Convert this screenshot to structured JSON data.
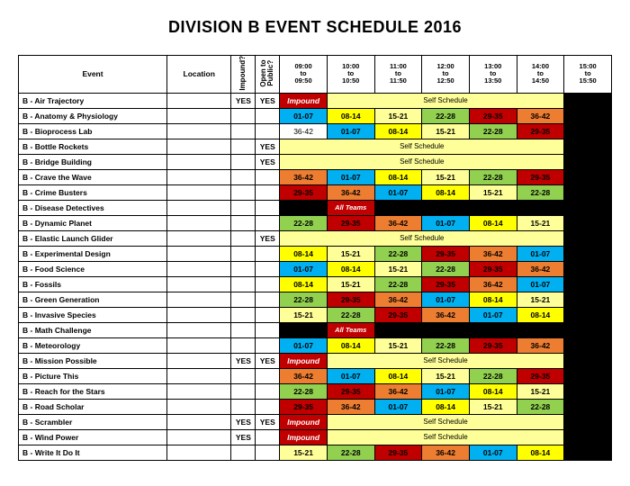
{
  "title": "DIVISION B EVENT SCHEDULE 2016",
  "headers": {
    "event": "Event",
    "location": "Location",
    "impound": "Impound?",
    "public": "Open to Public?",
    "times": [
      {
        "t1": "09:00",
        "t2": "to",
        "t3": "09:50"
      },
      {
        "t1": "10:00",
        "t2": "to",
        "t3": "10:50"
      },
      {
        "t1": "11:00",
        "t2": "to",
        "t3": "11:50"
      },
      {
        "t1": "12:00",
        "t2": "to",
        "t3": "12:50"
      },
      {
        "t1": "13:00",
        "t2": "to",
        "t3": "13:50"
      },
      {
        "t1": "14:00",
        "t2": "to",
        "t3": "14:50"
      },
      {
        "t1": "15:00",
        "t2": "to",
        "t3": "15:50"
      }
    ]
  },
  "yes": "YES",
  "impound_label": "Impound",
  "selfsched_label": "Self Schedule",
  "allteams_label": "All Teams",
  "colors": {
    "blue": "#00b0f0",
    "yellow": "#ffff00",
    "yellow2": "#ffff99",
    "green": "#92d050",
    "red": "#c00000",
    "orange": "#ed7d31",
    "black": "#000000",
    "white": "#ffffff"
  },
  "rows": [
    {
      "name": "B - Air Trajectory",
      "imp": "YES",
      "pub": "YES",
      "cells": [
        {
          "t": "impound"
        },
        {
          "t": "self",
          "span": 5
        },
        {
          "t": "black"
        }
      ]
    },
    {
      "name": "B - Anatomy & Physiology",
      "cells": [
        {
          "v": "01-07",
          "c": "blue"
        },
        {
          "v": "08-14",
          "c": "yellow"
        },
        {
          "v": "15-21",
          "c": "yellow2"
        },
        {
          "v": "22-28",
          "c": "green"
        },
        {
          "v": "29-35",
          "c": "red"
        },
        {
          "v": "36-42",
          "c": "orange"
        },
        {
          "t": "black"
        }
      ]
    },
    {
      "name": "B - Bioprocess Lab",
      "cells": [
        {
          "v": "36-42",
          "c": "white"
        },
        {
          "v": "01-07",
          "c": "blue"
        },
        {
          "v": "08-14",
          "c": "yellow"
        },
        {
          "v": "15-21",
          "c": "yellow2"
        },
        {
          "v": "22-28",
          "c": "green"
        },
        {
          "v": "29-35",
          "c": "red"
        },
        {
          "t": "black"
        }
      ]
    },
    {
      "name": "B - Bottle Rockets",
      "pub": "YES",
      "cells": [
        {
          "t": "self",
          "span": 6
        },
        {
          "t": "black"
        }
      ]
    },
    {
      "name": "B - Bridge Building",
      "pub": "YES",
      "cells": [
        {
          "t": "self",
          "span": 6
        },
        {
          "t": "black"
        }
      ]
    },
    {
      "name": "B - Crave the Wave",
      "cells": [
        {
          "v": "36-42",
          "c": "orange"
        },
        {
          "v": "01-07",
          "c": "blue"
        },
        {
          "v": "08-14",
          "c": "yellow"
        },
        {
          "v": "15-21",
          "c": "yellow2"
        },
        {
          "v": "22-28",
          "c": "green"
        },
        {
          "v": "29-35",
          "c": "red"
        },
        {
          "t": "black"
        }
      ]
    },
    {
      "name": "B - Crime Busters",
      "cells": [
        {
          "v": "29-35",
          "c": "red"
        },
        {
          "v": "36-42",
          "c": "orange"
        },
        {
          "v": "01-07",
          "c": "blue"
        },
        {
          "v": "08-14",
          "c": "yellow"
        },
        {
          "v": "15-21",
          "c": "yellow2"
        },
        {
          "v": "22-28",
          "c": "green"
        },
        {
          "t": "black"
        }
      ]
    },
    {
      "name": "B - Disease Detectives",
      "cells": [
        {
          "t": "black"
        },
        {
          "t": "allteams"
        },
        {
          "t": "black",
          "span": 5
        }
      ]
    },
    {
      "name": "B - Dynamic Planet",
      "cells": [
        {
          "v": "22-28",
          "c": "green"
        },
        {
          "v": "29-35",
          "c": "red"
        },
        {
          "v": "36-42",
          "c": "orange"
        },
        {
          "v": "01-07",
          "c": "blue"
        },
        {
          "v": "08-14",
          "c": "yellow"
        },
        {
          "v": "15-21",
          "c": "yellow2"
        },
        {
          "t": "black"
        }
      ]
    },
    {
      "name": "B - Elastic Launch Glider",
      "pub": "YES",
      "cells": [
        {
          "t": "self",
          "span": 6
        },
        {
          "t": "black"
        }
      ]
    },
    {
      "name": "B - Experimental Design",
      "cells": [
        {
          "v": "08-14",
          "c": "yellow"
        },
        {
          "v": "15-21",
          "c": "yellow2"
        },
        {
          "v": "22-28",
          "c": "green"
        },
        {
          "v": "29-35",
          "c": "red"
        },
        {
          "v": "36-42",
          "c": "orange"
        },
        {
          "v": "01-07",
          "c": "blue"
        },
        {
          "t": "black"
        }
      ]
    },
    {
      "name": "B - Food Science",
      "cells": [
        {
          "v": "01-07",
          "c": "blue"
        },
        {
          "v": "08-14",
          "c": "yellow"
        },
        {
          "v": "15-21",
          "c": "yellow2"
        },
        {
          "v": "22-28",
          "c": "green"
        },
        {
          "v": "29-35",
          "c": "red"
        },
        {
          "v": "36-42",
          "c": "orange"
        },
        {
          "t": "black"
        }
      ]
    },
    {
      "name": "B - Fossils",
      "cells": [
        {
          "v": "08-14",
          "c": "yellow"
        },
        {
          "v": "15-21",
          "c": "yellow2"
        },
        {
          "v": "22-28",
          "c": "green"
        },
        {
          "v": "29-35",
          "c": "red"
        },
        {
          "v": "36-42",
          "c": "orange"
        },
        {
          "v": "01-07",
          "c": "blue"
        },
        {
          "t": "black"
        }
      ]
    },
    {
      "name": "B - Green Generation",
      "cells": [
        {
          "v": "22-28",
          "c": "green"
        },
        {
          "v": "29-35",
          "c": "red"
        },
        {
          "v": "36-42",
          "c": "orange"
        },
        {
          "v": "01-07",
          "c": "blue"
        },
        {
          "v": "08-14",
          "c": "yellow"
        },
        {
          "v": "15-21",
          "c": "yellow2"
        },
        {
          "t": "black"
        }
      ]
    },
    {
      "name": "B - Invasive Species",
      "cells": [
        {
          "v": "15-21",
          "c": "yellow2"
        },
        {
          "v": "22-28",
          "c": "green"
        },
        {
          "v": "29-35",
          "c": "red"
        },
        {
          "v": "36-42",
          "c": "orange"
        },
        {
          "v": "01-07",
          "c": "blue"
        },
        {
          "v": "08-14",
          "c": "yellow"
        },
        {
          "t": "black"
        }
      ]
    },
    {
      "name": "B - Math Challenge",
      "cells": [
        {
          "t": "black"
        },
        {
          "t": "allteams"
        },
        {
          "t": "black",
          "span": 5
        }
      ]
    },
    {
      "name": "B - Meteorology",
      "cells": [
        {
          "v": "01-07",
          "c": "blue"
        },
        {
          "v": "08-14",
          "c": "yellow"
        },
        {
          "v": "15-21",
          "c": "yellow2"
        },
        {
          "v": "22-28",
          "c": "green"
        },
        {
          "v": "29-35",
          "c": "red"
        },
        {
          "v": "36-42",
          "c": "orange"
        },
        {
          "t": "black"
        }
      ]
    },
    {
      "name": "B - Mission Possible",
      "imp": "YES",
      "pub": "YES",
      "cells": [
        {
          "t": "impound"
        },
        {
          "t": "self",
          "span": 5
        },
        {
          "t": "black"
        }
      ]
    },
    {
      "name": "B - Picture This",
      "cells": [
        {
          "v": "36-42",
          "c": "orange"
        },
        {
          "v": "01-07",
          "c": "blue"
        },
        {
          "v": "08-14",
          "c": "yellow"
        },
        {
          "v": "15-21",
          "c": "yellow2"
        },
        {
          "v": "22-28",
          "c": "green"
        },
        {
          "v": "29-35",
          "c": "red"
        },
        {
          "t": "black"
        }
      ]
    },
    {
      "name": "B - Reach for the Stars",
      "cells": [
        {
          "v": "22-28",
          "c": "green"
        },
        {
          "v": "29-35",
          "c": "red"
        },
        {
          "v": "36-42",
          "c": "orange"
        },
        {
          "v": "01-07",
          "c": "blue"
        },
        {
          "v": "08-14",
          "c": "yellow"
        },
        {
          "v": "15-21",
          "c": "yellow2"
        },
        {
          "t": "black"
        }
      ]
    },
    {
      "name": "B - Road Scholar",
      "cells": [
        {
          "v": "29-35",
          "c": "red"
        },
        {
          "v": "36-42",
          "c": "orange"
        },
        {
          "v": "01-07",
          "c": "blue"
        },
        {
          "v": "08-14",
          "c": "yellow"
        },
        {
          "v": "15-21",
          "c": "yellow2"
        },
        {
          "v": "22-28",
          "c": "green"
        },
        {
          "t": "black"
        }
      ]
    },
    {
      "name": "B - Scrambler",
      "imp": "YES",
      "pub": "YES",
      "cells": [
        {
          "t": "impound"
        },
        {
          "t": "self",
          "span": 5
        },
        {
          "t": "black"
        }
      ]
    },
    {
      "name": "B - Wind Power",
      "imp": "YES",
      "cells": [
        {
          "t": "impound"
        },
        {
          "t": "self",
          "span": 5
        },
        {
          "t": "black"
        }
      ]
    },
    {
      "name": "B - Write It Do It",
      "cells": [
        {
          "v": "15-21",
          "c": "yellow2"
        },
        {
          "v": "22-28",
          "c": "green"
        },
        {
          "v": "29-35",
          "c": "red"
        },
        {
          "v": "36-42",
          "c": "orange"
        },
        {
          "v": "01-07",
          "c": "blue"
        },
        {
          "v": "08-14",
          "c": "yellow"
        },
        {
          "t": "black"
        }
      ]
    }
  ]
}
